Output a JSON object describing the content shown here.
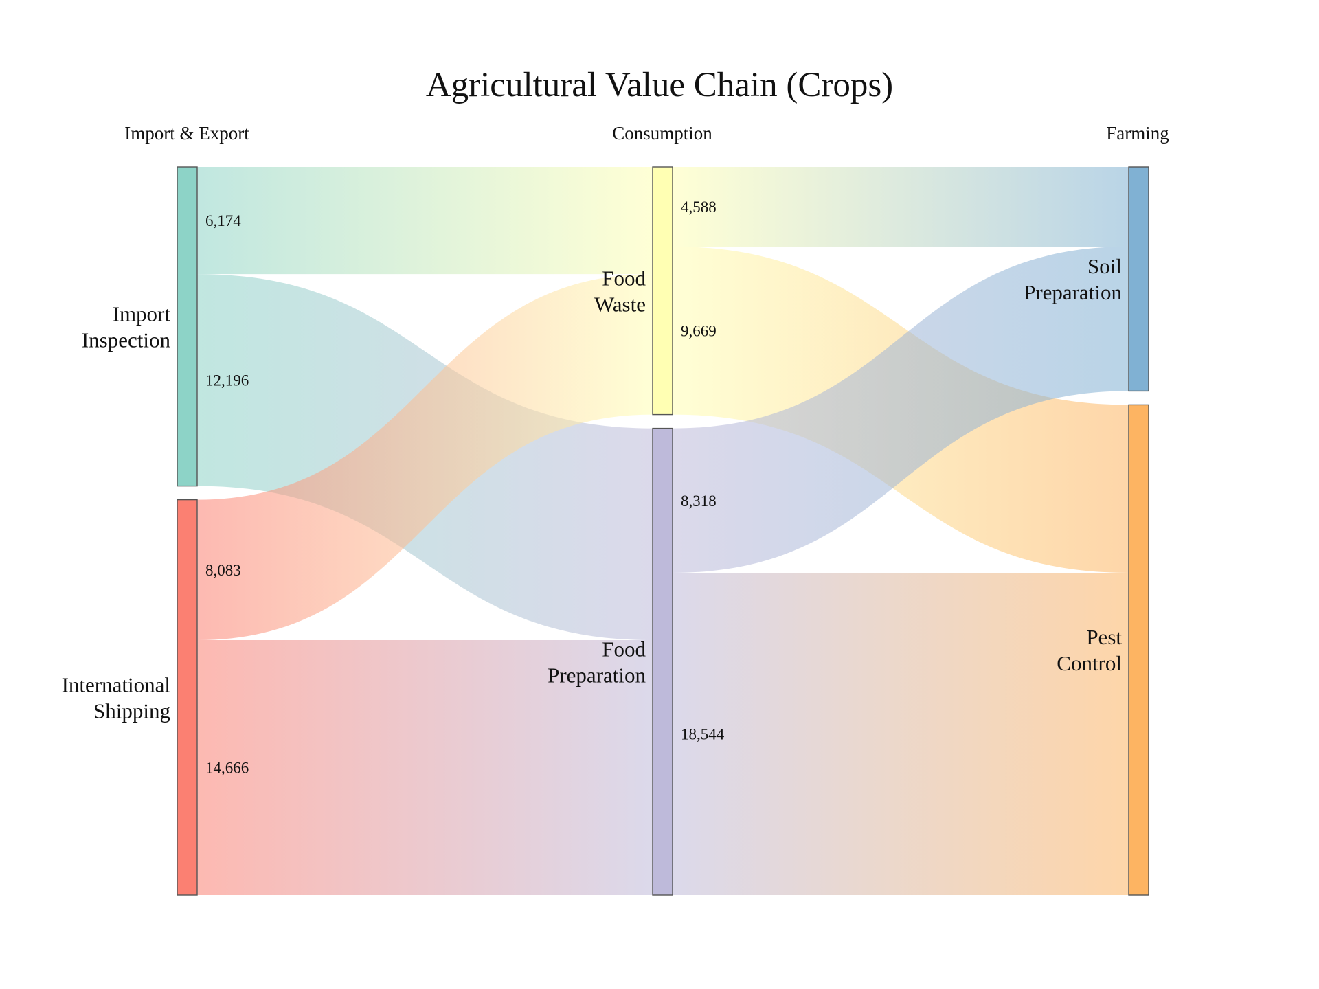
{
  "chart_data": {
    "type": "sankey",
    "title": "Agricultural Value Chain (Crops)",
    "columns": [
      {
        "label": "Import & Export",
        "nodes": [
          "Import Inspection",
          "International Shipping"
        ]
      },
      {
        "label": "Consumption",
        "nodes": [
          "Food Waste",
          "Food Preparation"
        ]
      },
      {
        "label": "Farming",
        "nodes": [
          "Soil Preparation",
          "Pest Control"
        ]
      }
    ],
    "nodes": [
      {
        "id": "import_inspection",
        "name": "Import Inspection",
        "lines": [
          "Import",
          "Inspection"
        ],
        "column": 0,
        "color": "#8dd3c7"
      },
      {
        "id": "international_shipping",
        "name": "International Shipping",
        "lines": [
          "International",
          "Shipping"
        ],
        "column": 0,
        "color": "#fb8072"
      },
      {
        "id": "food_waste",
        "name": "Food Waste",
        "lines": [
          "Food",
          "Waste"
        ],
        "column": 1,
        "color": "#ffffb3"
      },
      {
        "id": "food_preparation",
        "name": "Food Preparation",
        "lines": [
          "Food",
          "Preparation"
        ],
        "column": 1,
        "color": "#bebada"
      },
      {
        "id": "soil_preparation",
        "name": "Soil Preparation",
        "lines": [
          "Soil",
          "Preparation"
        ],
        "column": 2,
        "color": "#80b1d3"
      },
      {
        "id": "pest_control",
        "name": "Pest Control",
        "lines": [
          "Pest",
          "Control"
        ],
        "column": 2,
        "color": "#fdb462"
      }
    ],
    "links": [
      {
        "source": "import_inspection",
        "target": "food_waste",
        "value": 6174,
        "label": "6,174"
      },
      {
        "source": "import_inspection",
        "target": "food_preparation",
        "value": 12196,
        "label": "12,196"
      },
      {
        "source": "international_shipping",
        "target": "food_waste",
        "value": 8083,
        "label": "8,083"
      },
      {
        "source": "international_shipping",
        "target": "food_preparation",
        "value": 14666,
        "label": "14,666"
      },
      {
        "source": "food_waste",
        "target": "soil_preparation",
        "value": 4588,
        "label": "4,588"
      },
      {
        "source": "food_waste",
        "target": "pest_control",
        "value": 9669,
        "label": "9,669"
      },
      {
        "source": "food_preparation",
        "target": "soil_preparation",
        "value": 8318,
        "label": "8,318"
      },
      {
        "source": "food_preparation",
        "target": "pest_control",
        "value": 18544,
        "label": "18,544"
      }
    ]
  }
}
